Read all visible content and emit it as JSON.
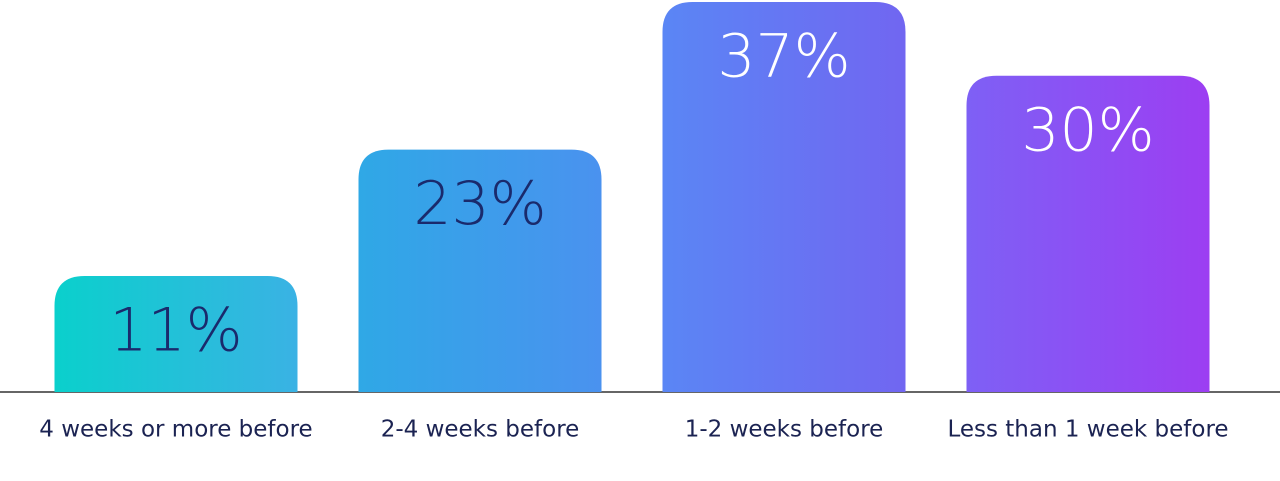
{
  "chart_data": {
    "type": "bar",
    "categories": [
      "4 weeks or more before",
      "2-4 weeks before",
      "1-2 weeks before",
      "Less than 1 week before"
    ],
    "values": [
      11,
      23,
      37,
      30
    ],
    "value_labels": [
      "11%",
      "23%",
      "37%",
      "30%"
    ],
    "colors": [
      [
        "#0ad0cc",
        "#3ab2e4"
      ],
      [
        "#2fa8e6",
        "#4a92ef"
      ],
      [
        "#5a86f5",
        "#7166f1"
      ],
      [
        "#7e60f5",
        "#9c3ef2"
      ]
    ],
    "value_label_colors": [
      "#1a2a6c",
      "#1a2a6c",
      "#ffffff",
      "#ffffff"
    ],
    "ylim": [
      0,
      37
    ]
  }
}
